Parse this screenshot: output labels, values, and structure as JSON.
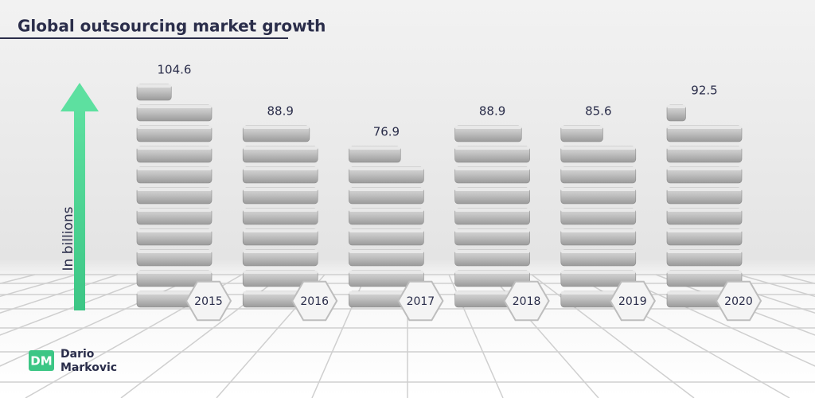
{
  "header": {
    "title": "Global outsourcing market growth"
  },
  "chart_data": {
    "type": "bar",
    "y_label": "In billions",
    "categories": [
      "2015",
      "2016",
      "2017",
      "2018",
      "2019",
      "2020"
    ],
    "values": [
      104.6,
      88.9,
      76.9,
      88.9,
      85.6,
      92.5
    ]
  },
  "logo": {
    "initials": "DM",
    "name_line1": "Dario",
    "name_line2": "Markovic"
  }
}
